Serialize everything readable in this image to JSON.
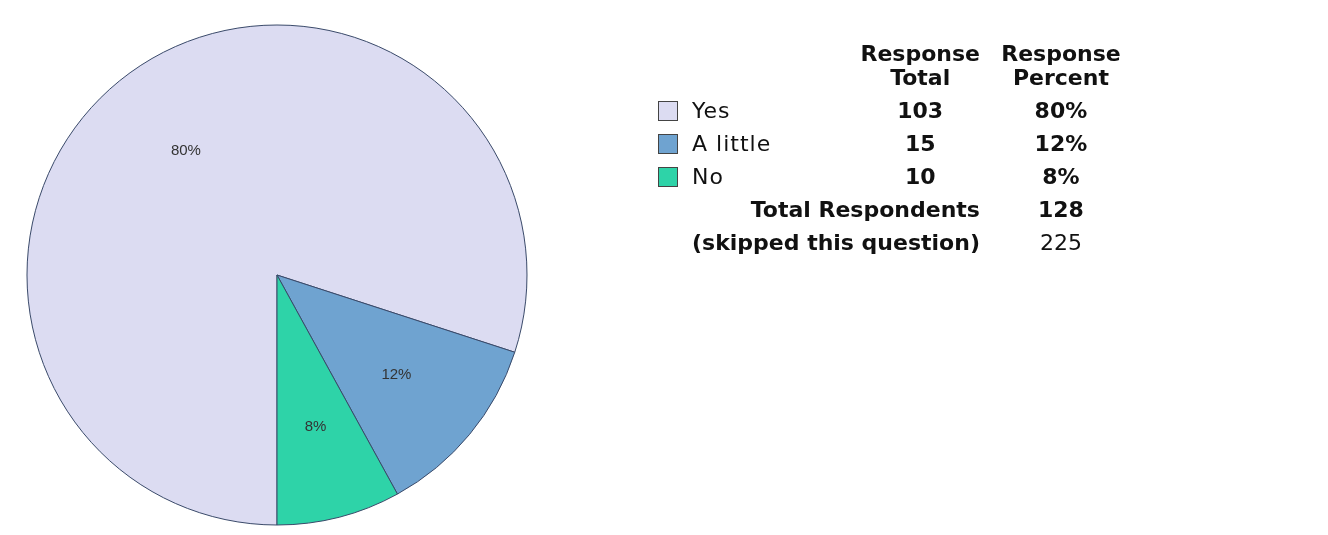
{
  "chart_data": {
    "type": "pie",
    "categories": [
      "Yes",
      "A little",
      "No"
    ],
    "values": [
      80,
      12,
      8
    ],
    "colors": [
      "#dcdcf2",
      "#6fa3d0",
      "#2ed3a8"
    ],
    "value_labels": [
      "80%",
      "12%",
      "8%"
    ],
    "legend": "right",
    "annotations": [
      "Response Total",
      "Response Percent",
      "103",
      "15",
      "10",
      "Total Respondents",
      "128",
      "(skipped this question)",
      "225"
    ]
  }
}
